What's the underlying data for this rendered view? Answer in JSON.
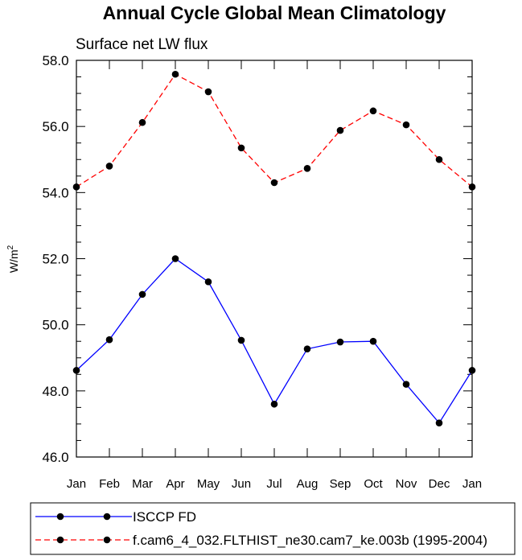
{
  "chart_data": {
    "type": "line",
    "title": "Annual Cycle Global Mean Climatology",
    "subtitle": "Surface net LW flux",
    "ylabel_base": "W/m",
    "ylabel_sup": "2",
    "xlabel": "",
    "categories": [
      "Jan",
      "Feb",
      "Mar",
      "Apr",
      "May",
      "Jun",
      "Jul",
      "Aug",
      "Sep",
      "Oct",
      "Nov",
      "Dec",
      "Jan"
    ],
    "ylim": [
      46.0,
      58.0
    ],
    "yticks": [
      46.0,
      48.0,
      50.0,
      52.0,
      54.0,
      56.0,
      58.0
    ],
    "ytick_labels": [
      "46.0",
      "48.0",
      "50.0",
      "52.0",
      "54.0",
      "56.0",
      "58.0"
    ],
    "series": [
      {
        "name": "ISCCP FD",
        "color": "#0000ff",
        "dash": "solid",
        "values": [
          48.62,
          49.55,
          50.92,
          52.0,
          51.3,
          49.53,
          47.6,
          49.27,
          49.48,
          49.5,
          48.2,
          47.03,
          48.62
        ]
      },
      {
        "name": "f.cam6_4_032.FLTHIST_ne30.cam7_ke.003b (1995-2004)",
        "color": "#ff0000",
        "dash": "dashed",
        "values": [
          54.17,
          54.8,
          56.12,
          57.58,
          57.05,
          55.35,
          54.3,
          54.73,
          55.88,
          56.47,
          56.05,
          55.0,
          54.17
        ]
      }
    ],
    "legend_position": "bottom"
  }
}
